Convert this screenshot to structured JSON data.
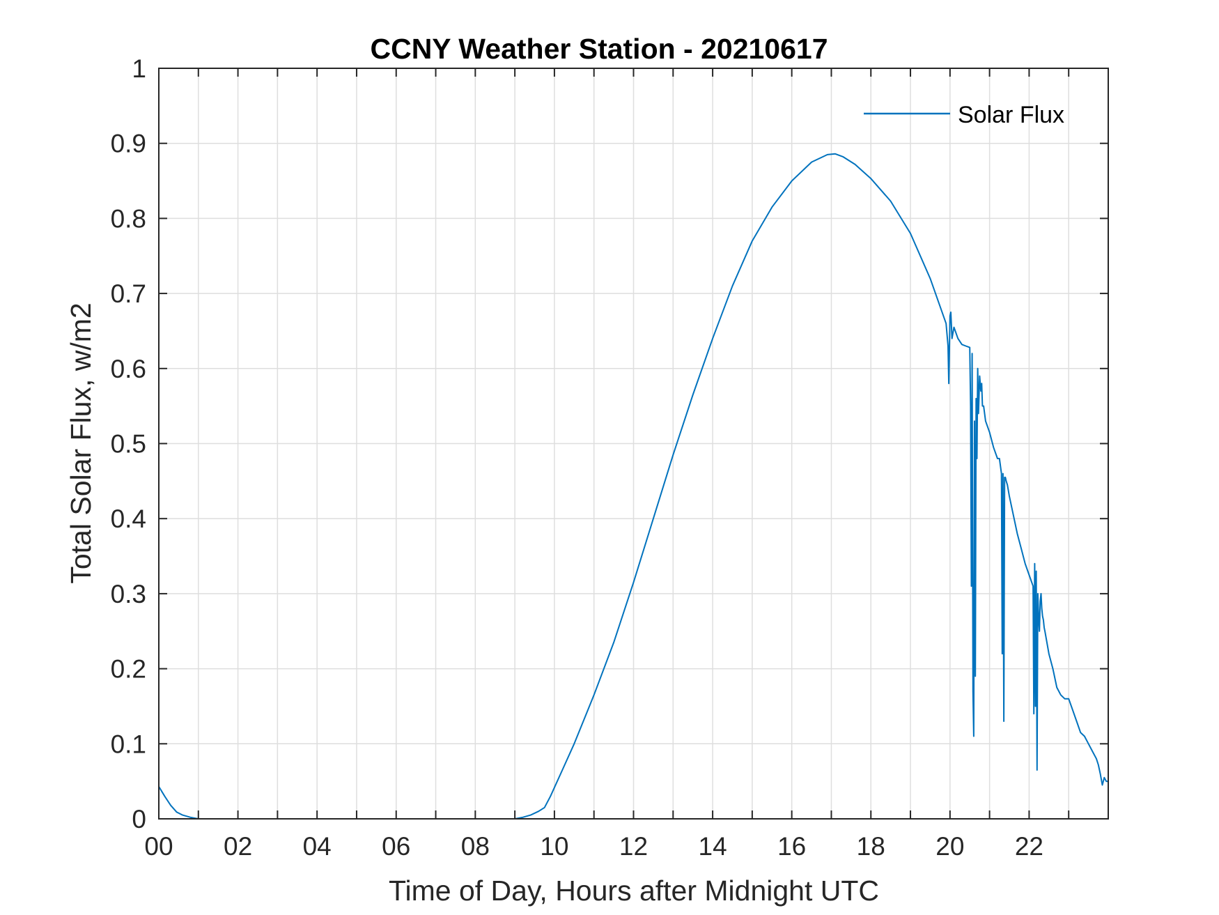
{
  "chart_data": {
    "type": "line",
    "title": "CCNY Weather Station - 20210617",
    "xlabel": "Time of Day, Hours after Midnight UTC",
    "ylabel": "Total Solar Flux, w/m2",
    "xlim": [
      0,
      24
    ],
    "ylim": [
      0,
      1
    ],
    "grid": true,
    "legend": {
      "position": "top-right",
      "entries": [
        "Solar Flux"
      ]
    },
    "x_tick_labels": [
      "00",
      "02",
      "04",
      "06",
      "08",
      "10",
      "12",
      "14",
      "16",
      "18",
      "20",
      "22"
    ],
    "x_tick_values": [
      0,
      2,
      4,
      6,
      8,
      10,
      12,
      14,
      16,
      18,
      20,
      22
    ],
    "x_minor_step": 1,
    "y_tick_labels": [
      "0",
      "0.1",
      "0.2",
      "0.3",
      "0.4",
      "0.5",
      "0.6",
      "0.7",
      "0.8",
      "0.9",
      "1"
    ],
    "y_tick_values": [
      0,
      0.1,
      0.2,
      0.3,
      0.4,
      0.5,
      0.6,
      0.7,
      0.8,
      0.9,
      1.0
    ],
    "series": [
      {
        "name": "Solar Flux",
        "color": "#0072BD",
        "x": [
          0,
          0.15,
          0.3,
          0.45,
          0.6,
          0.8,
          1.0,
          2,
          4,
          6,
          8,
          9.0,
          9.2,
          9.4,
          9.6,
          9.75,
          9.9,
          10.2,
          10.5,
          11,
          11.5,
          12,
          12.5,
          13,
          13.5,
          14,
          14.5,
          15,
          15.5,
          16,
          16.5,
          16.9,
          17.1,
          17.3,
          17.6,
          18,
          18.5,
          19,
          19.5,
          19.9,
          19.95,
          19.97,
          20.0,
          20.02,
          20.05,
          20.1,
          20.2,
          20.3,
          20.4,
          20.5,
          20.52,
          20.54,
          20.56,
          20.58,
          20.6,
          20.62,
          20.64,
          20.66,
          20.68,
          20.7,
          20.72,
          20.75,
          20.78,
          20.8,
          20.82,
          20.85,
          20.9,
          21.0,
          21.1,
          21.2,
          21.25,
          21.3,
          21.32,
          21.34,
          21.36,
          21.38,
          21.4,
          21.42,
          21.45,
          21.5,
          21.6,
          21.7,
          21.8,
          21.9,
          22.0,
          22.1,
          22.12,
          22.14,
          22.16,
          22.18,
          22.2,
          22.22,
          22.24,
          22.26,
          22.28,
          22.3,
          22.32,
          22.34,
          22.36,
          22.38,
          22.4,
          22.5,
          22.6,
          22.7,
          22.8,
          22.9,
          23.0,
          23.1,
          23.2,
          23.3,
          23.4,
          23.5,
          23.6,
          23.7,
          23.75,
          23.8,
          23.85,
          23.9,
          23.95,
          24.0
        ],
        "values": [
          0.043,
          0.03,
          0.018,
          0.009,
          0.005,
          0.002,
          0.0,
          0.0,
          0.0,
          0.0,
          0.0,
          0.0,
          0.002,
          0.005,
          0.01,
          0.015,
          0.03,
          0.065,
          0.1,
          0.165,
          0.235,
          0.315,
          0.4,
          0.485,
          0.565,
          0.64,
          0.71,
          0.77,
          0.815,
          0.85,
          0.875,
          0.885,
          0.886,
          0.882,
          0.872,
          0.853,
          0.823,
          0.78,
          0.72,
          0.66,
          0.63,
          0.58,
          0.67,
          0.675,
          0.64,
          0.655,
          0.64,
          0.632,
          0.63,
          0.628,
          0.55,
          0.31,
          0.62,
          0.17,
          0.11,
          0.53,
          0.19,
          0.56,
          0.48,
          0.6,
          0.54,
          0.59,
          0.57,
          0.58,
          0.55,
          0.55,
          0.53,
          0.515,
          0.495,
          0.48,
          0.48,
          0.46,
          0.22,
          0.46,
          0.13,
          0.455,
          0.455,
          0.45,
          0.445,
          0.43,
          0.405,
          0.38,
          0.36,
          0.34,
          0.325,
          0.31,
          0.14,
          0.34,
          0.15,
          0.33,
          0.065,
          0.3,
          0.27,
          0.25,
          0.29,
          0.3,
          0.28,
          0.27,
          0.265,
          0.255,
          0.25,
          0.22,
          0.2,
          0.175,
          0.165,
          0.16,
          0.16,
          0.145,
          0.13,
          0.115,
          0.11,
          0.1,
          0.09,
          0.08,
          0.072,
          0.06,
          0.045,
          0.055,
          0.05,
          0.05
        ]
      }
    ]
  }
}
